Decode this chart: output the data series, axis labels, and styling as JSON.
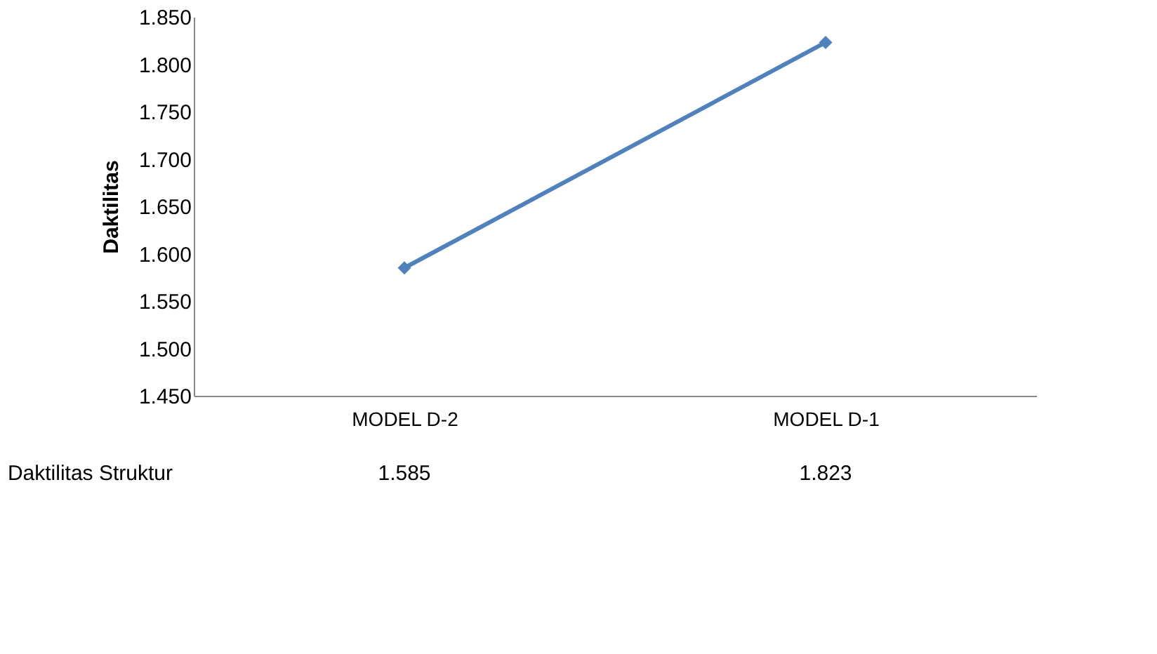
{
  "chart_data": {
    "type": "line",
    "ylabel": "Daktilitas",
    "categories": [
      "MODEL D-2",
      "MODEL D-1"
    ],
    "series": [
      {
        "name": "Daktilitas Struktur",
        "color": "#4f81bd",
        "values": [
          1.585,
          1.823
        ]
      }
    ],
    "ylim": [
      1.45,
      1.85
    ],
    "yticks": [
      {
        "value": 1.45,
        "label": "1.450"
      },
      {
        "value": 1.5,
        "label": "1.500"
      },
      {
        "value": 1.55,
        "label": "1.550"
      },
      {
        "value": 1.6,
        "label": "1.600"
      },
      {
        "value": 1.65,
        "label": "1.650"
      },
      {
        "value": 1.7,
        "label": "1.700"
      },
      {
        "value": 1.75,
        "label": "1.750"
      },
      {
        "value": 1.8,
        "label": "1.800"
      },
      {
        "value": 1.85,
        "label": "1.850"
      }
    ],
    "marker": "diamond",
    "line_style": "solid",
    "grid": false,
    "data_labels": true
  }
}
